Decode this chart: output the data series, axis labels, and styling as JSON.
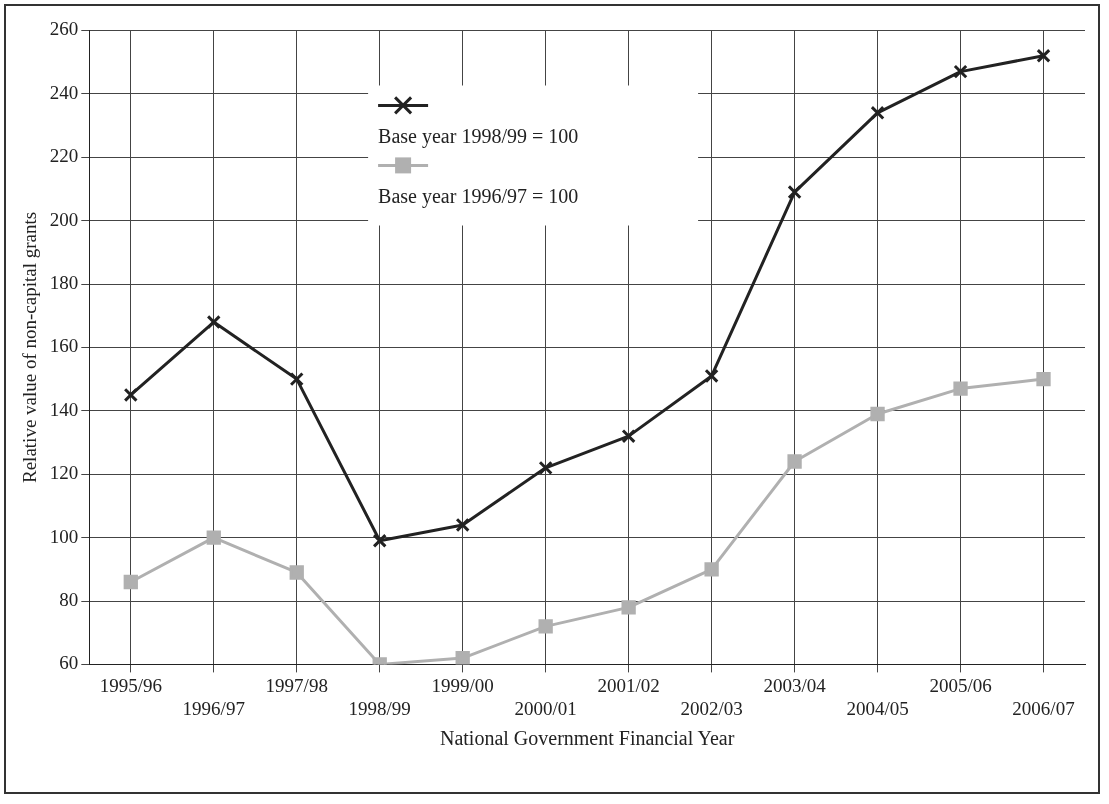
{
  "chart_data": {
    "type": "line",
    "xlabel": "National Government Financial Year",
    "ylabel": "Relative value of non-capital grants",
    "categories": [
      "1995/96",
      "1996/97",
      "1997/98",
      "1998/99",
      "1999/00",
      "2000/01",
      "2001/02",
      "2002/03",
      "2003/04",
      "2004/05",
      "2005/06",
      "2006/07"
    ],
    "series": [
      {
        "name": "Base year 1998/99 = 100",
        "color": "#222222",
        "marker": "cross",
        "values": [
          145,
          168,
          150,
          99,
          104,
          122,
          132,
          151,
          209,
          234,
          247,
          252
        ]
      },
      {
        "name": "Base year 1996/97 = 100",
        "color": "#b0b0b0",
        "marker": "square",
        "values": [
          86,
          100,
          89,
          60,
          62,
          72,
          78,
          90,
          124,
          139,
          147,
          150
        ]
      }
    ],
    "ylim": [
      60,
      260
    ],
    "yticks": [
      60,
      80,
      100,
      120,
      140,
      160,
      180,
      200,
      220,
      240,
      260
    ],
    "grid": true,
    "legend": "top",
    "line_style": "solid"
  }
}
